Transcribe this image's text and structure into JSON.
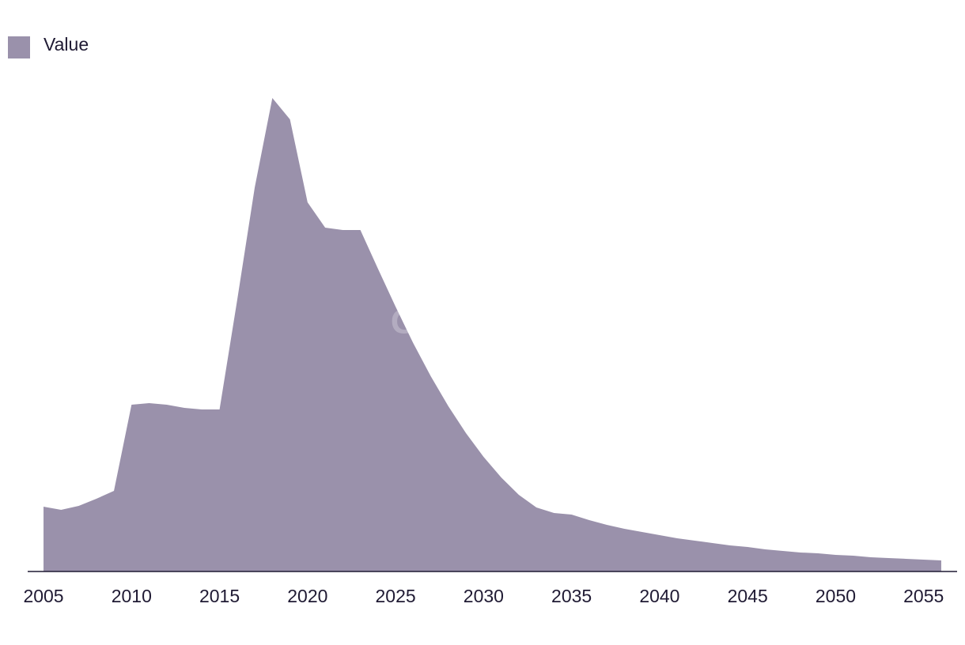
{
  "chart_data": {
    "type": "area",
    "watermark": "GlobalData",
    "x": [
      2005,
      2006,
      2007,
      2008,
      2009,
      2010,
      2011,
      2012,
      2013,
      2014,
      2015,
      2016,
      2017,
      2018,
      2019,
      2020,
      2021,
      2022,
      2023,
      2024,
      2025,
      2026,
      2027,
      2028,
      2029,
      2030,
      2031,
      2032,
      2033,
      2034,
      2035,
      2036,
      2037,
      2038,
      2039,
      2040,
      2041,
      2042,
      2043,
      2044,
      2045,
      2046,
      2047,
      2048,
      2049,
      2050,
      2051,
      2052,
      2053,
      2054,
      2055,
      2056
    ],
    "series": [
      {
        "name": "Value",
        "color": "#9a91ab",
        "values": [
          82,
          78,
          83,
          92,
          102,
          211,
          213,
          211,
          207,
          205,
          205,
          343,
          486,
          599,
          572,
          467,
          435,
          432,
          432,
          383,
          335,
          289,
          247,
          209,
          175,
          145,
          119,
          97,
          81,
          74,
          72,
          65,
          59,
          54,
          50,
          46,
          42,
          39,
          36,
          33,
          31,
          28,
          26,
          24,
          23,
          21,
          20,
          18,
          17,
          16,
          15,
          14
        ]
      }
    ],
    "xlim": [
      2004.1,
      2056.9
    ],
    "xticks": [
      2005,
      2010,
      2015,
      2020,
      2025,
      2030,
      2035,
      2040,
      2045,
      2050,
      2055
    ],
    "ylim": [
      0,
      620
    ],
    "legend": "top-left"
  }
}
